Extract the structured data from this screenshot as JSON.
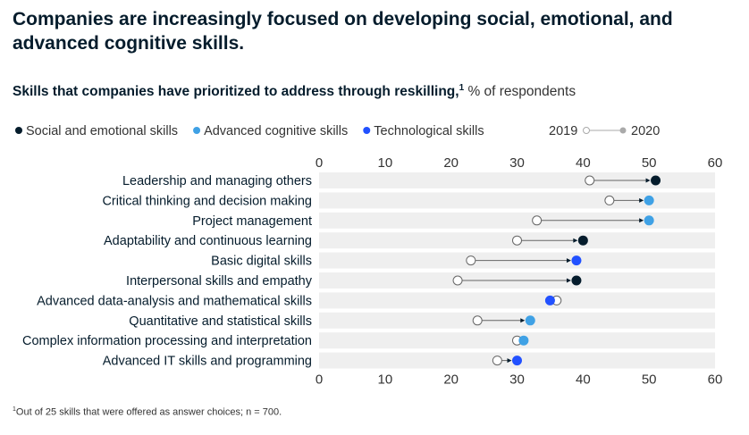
{
  "title": "Companies are increasingly focused on developing social, emotional, and advanced cognitive skills.",
  "subtitle": {
    "main": "Skills that companies have prioritized to address through reskilling,",
    "footnote_ref": "1",
    "unit": "% of respondents"
  },
  "footnote": {
    "marker": "1",
    "text": "Out of 25 skills that were offered as answer choices; n = 700."
  },
  "colors": {
    "social": "#051c2c",
    "cognitive": "#3fa1e5",
    "technological": "#2251ff",
    "row_band": "#efefef",
    "connector": "#666666",
    "marker_2019": "#ffffff"
  },
  "chart_data": {
    "type": "dumbbell",
    "xlim": [
      0,
      60
    ],
    "x_ticks": [
      0,
      10,
      20,
      30,
      40,
      50,
      60
    ],
    "legend": {
      "groups": [
        {
          "key": "social",
          "label": "Social and emotional skills"
        },
        {
          "key": "cognitive",
          "label": "Advanced cognitive skills"
        },
        {
          "key": "technological",
          "label": "Technological skills"
        }
      ],
      "year_start": "2019",
      "year_end": "2020"
    },
    "rows": [
      {
        "label": "Leadership and managing others",
        "group": "social",
        "y2019": 41,
        "y2020": 51
      },
      {
        "label": "Critical thinking and decision making",
        "group": "cognitive",
        "y2019": 44,
        "y2020": 50
      },
      {
        "label": "Project management",
        "group": "cognitive",
        "y2019": 33,
        "y2020": 50
      },
      {
        "label": "Adaptability and continuous learning",
        "group": "social",
        "y2019": 30,
        "y2020": 40
      },
      {
        "label": "Basic digital skills",
        "group": "technological",
        "y2019": 23,
        "y2020": 39
      },
      {
        "label": "Interpersonal skills and empathy",
        "group": "social",
        "y2019": 21,
        "y2020": 39
      },
      {
        "label": "Advanced data-analysis and mathematical skills",
        "group": "technological",
        "y2019": 36,
        "y2020": 35
      },
      {
        "label": "Quantitative and statistical skills",
        "group": "cognitive",
        "y2019": 24,
        "y2020": 32
      },
      {
        "label": "Complex information processing and interpretation",
        "group": "cognitive",
        "y2019": 30,
        "y2020": 31
      },
      {
        "label": "Advanced IT skills and programming",
        "group": "technological",
        "y2019": 27,
        "y2020": 30
      }
    ]
  }
}
